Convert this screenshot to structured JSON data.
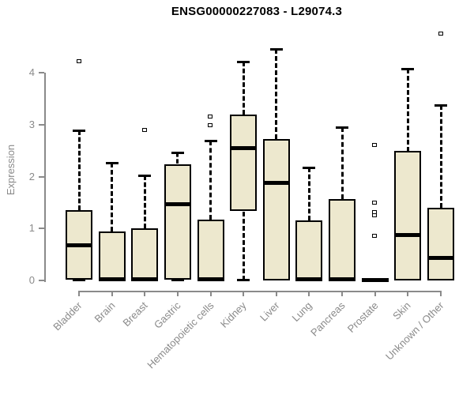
{
  "chart_data": {
    "type": "boxplot",
    "title": "ENSG00000227083 - L29074.3",
    "ylabel": "Expression",
    "xlabel": "",
    "ylim": [
      0,
      4.8
    ],
    "yticks": [
      0,
      1,
      2,
      3,
      4
    ],
    "grid": false,
    "legend": "none",
    "categories": [
      "Bladder",
      "Brain",
      "Breast",
      "Gastric",
      "Hematopoietic cells",
      "Kidney",
      "Liver",
      "Lung",
      "Pancreas",
      "Prostate",
      "Skin",
      "Unknown / Other"
    ],
    "boxes": [
      {
        "category": "Bladder",
        "whisker_low": 0,
        "q1": 0.02,
        "median": 0.68,
        "q3": 1.36,
        "whisker_high": 2.89,
        "outliers": [
          4.21
        ]
      },
      {
        "category": "Brain",
        "whisker_low": 0,
        "q1": 0.0,
        "median": 0.03,
        "q3": 0.95,
        "whisker_high": 2.27,
        "outliers": []
      },
      {
        "category": "Breast",
        "whisker_low": 0,
        "q1": 0.0,
        "median": 0.03,
        "q3": 1.0,
        "whisker_high": 2.02,
        "outliers": [
          2.89
        ]
      },
      {
        "category": "Gastric",
        "whisker_low": 0,
        "q1": 0.02,
        "median": 1.48,
        "q3": 2.24,
        "whisker_high": 2.46,
        "outliers": []
      },
      {
        "category": "Hematopoietic cells",
        "whisker_low": 0,
        "q1": 0.0,
        "median": 0.03,
        "q3": 1.17,
        "whisker_high": 2.69,
        "outliers": [
          2.98,
          3.15
        ]
      },
      {
        "category": "Kidney",
        "whisker_low": 0,
        "q1": 1.33,
        "median": 2.56,
        "q3": 3.19,
        "whisker_high": 4.21,
        "outliers": []
      },
      {
        "category": "Liver",
        "whisker_low": 0,
        "q1": 0.0,
        "median": 1.88,
        "q3": 2.73,
        "whisker_high": 4.46,
        "outliers": []
      },
      {
        "category": "Lung",
        "whisker_low": 0,
        "q1": 0.0,
        "median": 0.03,
        "q3": 1.15,
        "whisker_high": 2.17,
        "outliers": []
      },
      {
        "category": "Pancreas",
        "whisker_low": 0,
        "q1": 0.0,
        "median": 0.03,
        "q3": 1.57,
        "whisker_high": 2.95,
        "outliers": []
      },
      {
        "category": "Prostate",
        "whisker_low": 0,
        "q1": 0.0,
        "median": 0.02,
        "q3": 0.03,
        "whisker_high": 0.03,
        "outliers": [
          0.85,
          1.24,
          1.31,
          1.49,
          2.6
        ]
      },
      {
        "category": "Skin",
        "whisker_low": 0,
        "q1": 0.0,
        "median": 0.88,
        "q3": 2.49,
        "whisker_high": 4.08,
        "outliers": []
      },
      {
        "category": "Unknown / Other",
        "whisker_low": 0,
        "q1": 0.0,
        "median": 0.44,
        "q3": 1.4,
        "whisker_high": 3.38,
        "outliers": [
          4.75
        ]
      }
    ],
    "colors": {
      "box_fill": "#EDE8CE",
      "box_border": "#000000",
      "median": "#000000",
      "whisker": "#000000",
      "outlier_border": "#000000",
      "axis": "#8a8a8a",
      "tick_label": "#8a8a8a",
      "title": "#000000",
      "background": "#ffffff"
    }
  }
}
